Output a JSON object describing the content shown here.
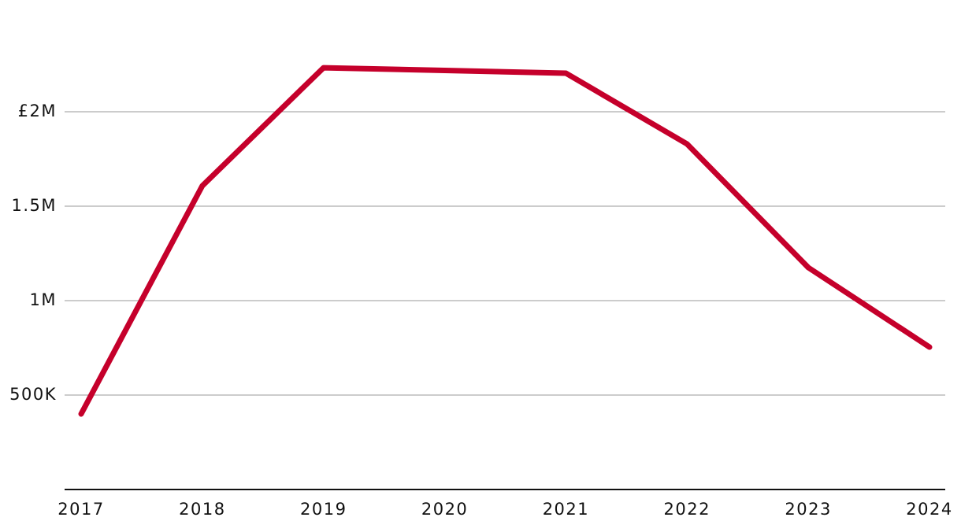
{
  "chart_data": {
    "type": "line",
    "categories": [
      "2017",
      "2018",
      "2019",
      "2020",
      "2021",
      "2022",
      "2023",
      "2024"
    ],
    "series": [
      {
        "color": "#c5002b",
        "values": [
          400000,
          1608000,
          2233000,
          2219000,
          2204000,
          1829000,
          1175000,
          754000
        ]
      }
    ],
    "ylim": [
      0,
      2500000
    ],
    "yticks": [
      {
        "value": 500000,
        "label": "500K"
      },
      {
        "value": 1000000,
        "label": "1M"
      },
      {
        "value": 1500000,
        "label": "1.5M"
      },
      {
        "value": 2000000,
        "label": "£2M"
      }
    ],
    "grid": true
  }
}
